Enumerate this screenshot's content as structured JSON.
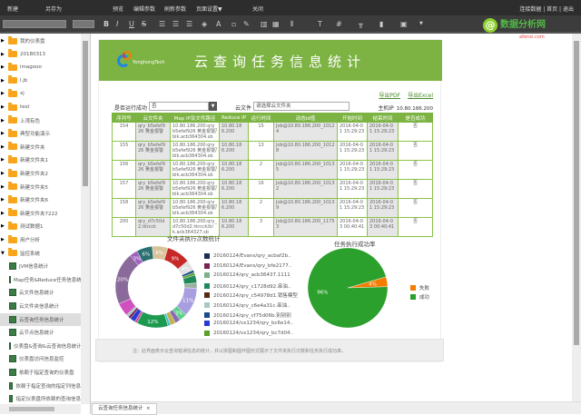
{
  "menubar": {
    "items": [
      "新建",
      "另存为",
      "预览",
      "编辑参数",
      "刷新参数",
      "页面设置▼",
      "关闭"
    ],
    "right": "连接数据 | 首页 | 退出"
  },
  "watermark": {
    "text": "数据分析网",
    "sub": "afenxi.com",
    "at": "@"
  },
  "sidebar": {
    "items": [
      {
        "label": "我的仪表盘",
        "type": "folder"
      },
      {
        "label": "20180313",
        "type": "folder"
      },
      {
        "label": "imagooo",
        "type": "folder"
      },
      {
        "label": "l.jb",
        "type": "folder"
      },
      {
        "label": "xj",
        "type": "folder"
      },
      {
        "label": "test",
        "type": "folder"
      },
      {
        "label": "上湾有色",
        "type": "folder"
      },
      {
        "label": "典型功能演示",
        "type": "folder"
      },
      {
        "label": "新建文件夹",
        "type": "folder"
      },
      {
        "label": "新建文件夹1",
        "type": "folder"
      },
      {
        "label": "新建文件夹2",
        "type": "folder"
      },
      {
        "label": "新建文件夹5",
        "type": "folder"
      },
      {
        "label": "新建文件夹6",
        "type": "folder"
      },
      {
        "label": "新建文件夹7222",
        "type": "folder"
      },
      {
        "label": "测试数据1",
        "type": "folder"
      },
      {
        "label": "用户分析",
        "type": "folder"
      },
      {
        "label": "监控系统",
        "type": "folder",
        "open": true
      },
      {
        "label": "JVM信息统计",
        "type": "report"
      },
      {
        "label": "Map任务&Reduce任务信息统计",
        "type": "report"
      },
      {
        "label": "云文件信息统计",
        "type": "report"
      },
      {
        "label": "云文件夹信息统计",
        "type": "report"
      },
      {
        "label": "云查询任务信息统计",
        "type": "report",
        "selected": true
      },
      {
        "label": "云节点信息统计",
        "type": "report"
      },
      {
        "label": "仪表盘&查询&云查询信息统计",
        "type": "report"
      },
      {
        "label": "仪表盘访问信息监控",
        "type": "report"
      },
      {
        "label": "依赖于指定查询的仪表盘",
        "type": "report"
      },
      {
        "label": "依赖于指定查询的指定列信息",
        "type": "report"
      },
      {
        "label": "指定仪表盘所依赖的查询信息",
        "type": "report"
      }
    ]
  },
  "report": {
    "brand": "YonghongTech",
    "title": "云查询任务信息统计",
    "export_pdf": "导出PDF",
    "export_excel": "导出Excel",
    "filter_label": "是否运行成功",
    "filter_value": "否",
    "file_label": "云文件",
    "file_placeholder": "请选择云文件夹",
    "host_label": "主机IP",
    "host_value": "10.80.186.200",
    "columns": [
      "序列号",
      "云文件夹",
      "Map IP及文件路径",
      "Reduce IP",
      "运行时间",
      "动态id值",
      "开始时间",
      "结束时间",
      "是否成功"
    ],
    "rows": [
      [
        "154",
        "qry_b5efef926 黄金报警",
        "10.80.186.200:qry_b5efef926 黄金报警/blk.acb364304.sb",
        "10.80.186.200",
        "15",
        "Job@10.80.186.200_10124",
        "2016-04-01 15:29:23",
        "2016-04-01 15:29:23",
        "否"
      ],
      [
        "155",
        "qry_b5efef926 黄金报警",
        "10.80.186.200:qry_b5efef926 黄金报警/blk.acb364304.sb",
        "10.80.186.200",
        "13",
        "Job@10.80.186.200_10128",
        "2016-04-01 15:29:23",
        "2016-04-01 15:29:23",
        "否"
      ],
      [
        "156",
        "qry_b5efef926 黄金报警",
        "10.80.186.200:qry_b5efef926 黄金报警/blk.acb364304.sb",
        "10.80.186.200",
        "2",
        "Job@10.80.186.200_10135",
        "2016-04-01 15:29:23",
        "2016-04-01 15:29:23",
        "否"
      ],
      [
        "157",
        "qry_b5efef926 黄金报警",
        "10.80.186.200:qry_b5efef926 黄金报警/blk.acb364304.sb",
        "10.80.186.200",
        "16",
        "Job@10.80.186.200_10132",
        "2016-04-01 15:29:23",
        "2016-04-01 15:29:23",
        "否"
      ],
      [
        "158",
        "qry_b5efef926 黄金报警",
        "10.80.186.200:qry_b5efef926 黄金报警/blk.acb364304.sb",
        "10.80.186.200",
        "2",
        "Job@10.80.186.200_10139",
        "2016-04-01 15:29:23",
        "2016-04-01 15:29:23",
        "否"
      ],
      [
        "200",
        "qry_d7c50d2.tkrcck",
        "10.80.186.200:qry_d7c50d2.tkrcck/blk.acb364327.sb",
        "10.80.186.200",
        "3",
        "Job@10.80.186.200_11753",
        "2016-04-03 00:40:41",
        "2016-04-03 00:40:41",
        "否"
      ]
    ],
    "note": "注：此界面表示云查询错误信息的统计，并以饼图和圆环图形式展示了文件夹执行次数和任务执行成功率。"
  },
  "chart_data": [
    {
      "type": "pie",
      "variant": "donut",
      "title": "文件夹执行次数统计",
      "legend": [
        "20160124/Evans/qry_acbaf2b..",
        "20160124/Evans/qry_bfe2177..",
        "20160124/qry_acb36437.1111",
        "20160124/qry_c1728d92.串油..",
        "20160124/qry_c54978d1.销售模型",
        "20160124/qry_c6e4a31c.串油..",
        "20160124/qry_cf75d06b.别别别",
        "20160124/vx1234/qry_bc6e14..",
        "20160124/vx1234/qry_bc7d04.."
      ],
      "legend_colors": [
        "#1a2a5a",
        "#7b2050",
        "#7fb08a",
        "#1e8a5a",
        "#5a2a10",
        "#a8c8c0",
        "#1a4a8a",
        "#2a3ad0",
        "#5aa02a"
      ],
      "slices": [
        {
          "value": 6,
          "color": "#d9c39a",
          "label": "6%"
        },
        {
          "value": 9,
          "color": "#c62828",
          "label": "9%"
        },
        {
          "value": 4,
          "color": "#e0e0e0",
          "label": "4%"
        },
        {
          "value": 1,
          "color": "#1a4a8a",
          "label": ""
        },
        {
          "value": 1,
          "color": "#5aa02a",
          "label": ""
        },
        {
          "value": 3,
          "color": "#1e8a5a",
          "label": ""
        },
        {
          "value": 2,
          "color": "#9ab0a0",
          "label": ""
        },
        {
          "value": 11,
          "color": "#a89ee0",
          "label": "11%"
        },
        {
          "value": 3,
          "color": "#5ad08a",
          "label": "3%"
        },
        {
          "value": 2,
          "color": "#8a6ab0",
          "label": ""
        },
        {
          "value": 2,
          "color": "#c0b050",
          "label": ""
        },
        {
          "value": 1,
          "color": "#40c0d0",
          "label": ""
        },
        {
          "value": 12,
          "color": "#1e9a50",
          "label": "12%"
        },
        {
          "value": 1,
          "color": "#d04a9a",
          "label": ""
        },
        {
          "value": 2,
          "color": "#2a3ad0",
          "label": ""
        },
        {
          "value": 1,
          "color": "#7b2050",
          "label": ""
        },
        {
          "value": 1,
          "color": "#a8c8c0",
          "label": ""
        },
        {
          "value": 5,
          "color": "#d050c0",
          "label": ""
        },
        {
          "value": 20,
          "color": "#8a6a9a",
          "label": "20%"
        },
        {
          "value": 3,
          "color": "#a060c0",
          "label": "3%"
        },
        {
          "value": 6,
          "color": "#2a7070",
          "label": "6%"
        }
      ]
    },
    {
      "type": "pie",
      "title": "任务执行成功率",
      "categories": [
        "失败",
        "成功"
      ],
      "values": [
        4,
        96
      ],
      "labels": [
        "4%",
        "96%"
      ],
      "colors": [
        "#f57c00",
        "#2ca02c"
      ]
    }
  ],
  "tabs": [
    {
      "label": "云查询任务信息统计",
      "close": "×"
    }
  ]
}
